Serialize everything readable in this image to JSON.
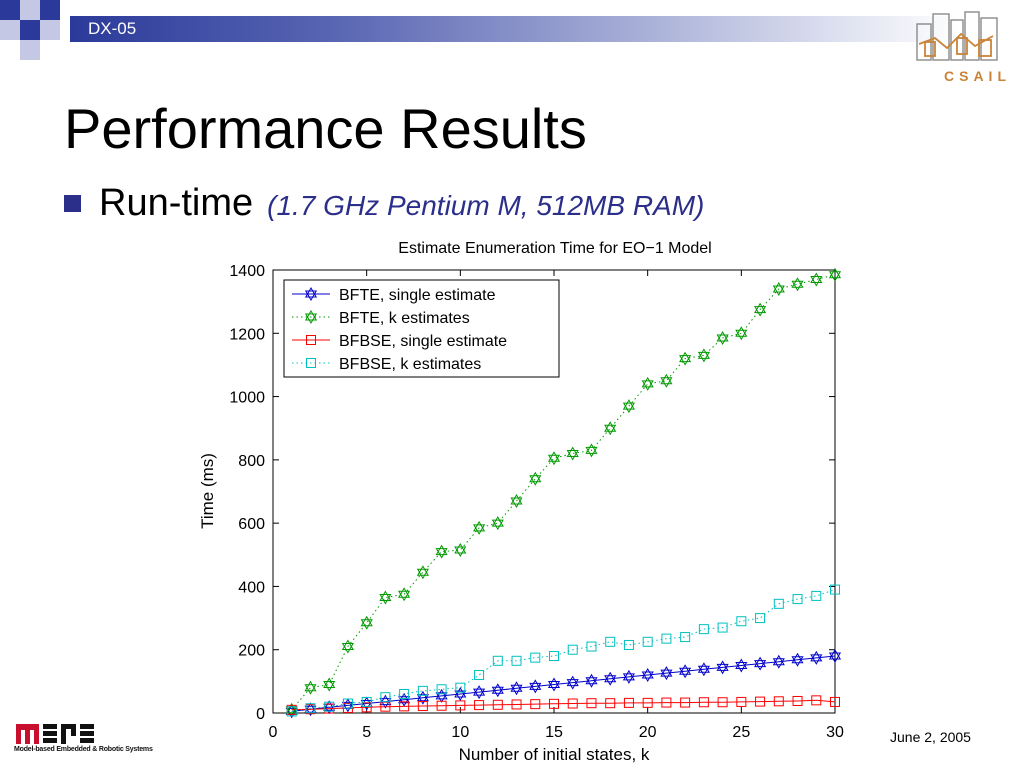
{
  "header": {
    "band_label": "DX-05"
  },
  "slide": {
    "title": "Performance Results",
    "bullet_main": "Run-time",
    "bullet_note": "(1.7 GHz Pentium M, 512MB RAM)",
    "date": "June 2, 2005"
  },
  "logos": {
    "csail": "CSAIL",
    "mers_name": "Model-based Embedded & Robotic Systems"
  },
  "colors": {
    "band_dark": "#2b3a9a",
    "bullet": "#2b2f8a",
    "bfte_single": "#0000cc",
    "bfte_k": "#009900",
    "bfbse_single": "#ff0000",
    "bfbse_k": "#00c0c0"
  },
  "chart_data": {
    "type": "line",
    "title": "Estimate Enumeration Time for EO−1 Model",
    "xlabel": "Number of initial states, k",
    "ylabel": "Time (ms)",
    "xlim": [
      0,
      30
    ],
    "ylim": [
      0,
      1400
    ],
    "xticks": [
      0,
      5,
      10,
      15,
      20,
      25,
      30
    ],
    "yticks": [
      0,
      200,
      400,
      600,
      800,
      1000,
      1200,
      1400
    ],
    "grid": false,
    "legend_position": "top-left",
    "x": [
      1,
      2,
      3,
      4,
      5,
      6,
      7,
      8,
      9,
      10,
      11,
      12,
      13,
      14,
      15,
      16,
      17,
      18,
      19,
      20,
      21,
      22,
      23,
      24,
      25,
      26,
      27,
      28,
      29,
      30
    ],
    "series": [
      {
        "name": "BFTE, single estimate",
        "color": "#0000cc",
        "marker": "hexagram",
        "line": "solid",
        "values": [
          5,
          12,
          18,
          24,
          30,
          36,
          42,
          48,
          54,
          60,
          66,
          72,
          78,
          84,
          90,
          96,
          102,
          108,
          114,
          120,
          126,
          132,
          138,
          144,
          150,
          156,
          162,
          168,
          174,
          180
        ]
      },
      {
        "name": "BFTE, k estimates",
        "color": "#009900",
        "marker": "hexagram",
        "line": "dotted",
        "values": [
          10,
          80,
          90,
          210,
          285,
          365,
          375,
          445,
          510,
          515,
          585,
          600,
          670,
          740,
          805,
          820,
          830,
          900,
          970,
          1040,
          1050,
          1120,
          1130,
          1185,
          1200,
          1275,
          1340,
          1355,
          1370,
          1385
        ]
      },
      {
        "name": "BFBSE, single estimate",
        "color": "#ff0000",
        "marker": "square",
        "line": "solid",
        "values": [
          10,
          12,
          14,
          16,
          18,
          20,
          21,
          22,
          23,
          24,
          25,
          26,
          27,
          28,
          29,
          30,
          31,
          31,
          32,
          32,
          33,
          33,
          34,
          34,
          35,
          36,
          37,
          38,
          40,
          35
        ]
      },
      {
        "name": "BFBSE, k estimates",
        "color": "#00c0c0",
        "marker": "square",
        "line": "dotted",
        "values": [
          5,
          15,
          20,
          30,
          35,
          50,
          60,
          70,
          75,
          80,
          120,
          165,
          165,
          175,
          180,
          200,
          210,
          225,
          215,
          225,
          235,
          240,
          265,
          270,
          290,
          300,
          345,
          360,
          370,
          390
        ]
      }
    ]
  }
}
